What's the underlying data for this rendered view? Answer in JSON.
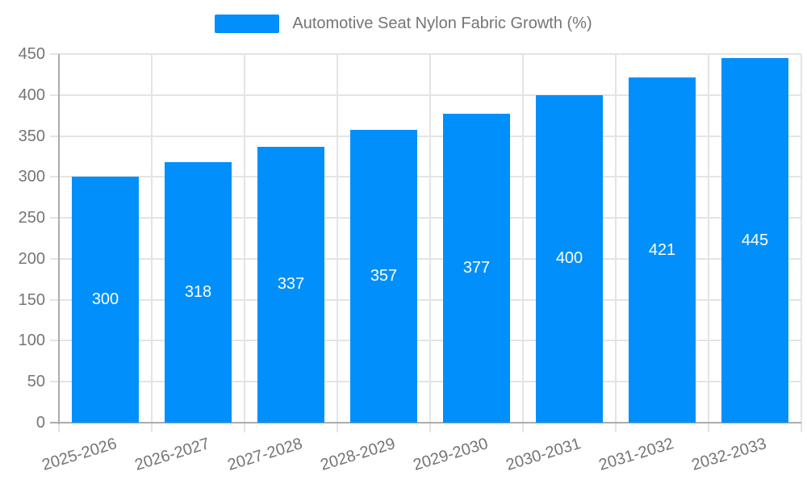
{
  "chart_data": {
    "type": "bar",
    "title": "Automotive Seat Nylon Fabric Growth (%)",
    "legend_entries": [
      "Automotive Seat Nylon Fabric Growth (%)"
    ],
    "legend_position": "top-center",
    "categories": [
      "2025-2026",
      "2026-2027",
      "2027-2028",
      "2028-2029",
      "2029-2030",
      "2030-2031",
      "2031-2032",
      "2032-2033"
    ],
    "values": [
      300,
      318,
      337,
      357,
      377,
      400,
      421,
      445
    ],
    "xlabel": "",
    "ylabel": "",
    "ylim": [
      0,
      450
    ],
    "yticks": [
      0,
      50,
      100,
      150,
      200,
      250,
      300,
      350,
      400,
      450
    ],
    "grid": "on",
    "bar_value_labels_shown": true,
    "colors": {
      "bar": "#008FFB",
      "bar_label_text": "#FFFFFF",
      "tick_text": "#757575",
      "legend_text": "#757575",
      "gridline": "#E4E4E4",
      "axis_line": "#ACACAC",
      "background": "#FFFFFF"
    }
  }
}
